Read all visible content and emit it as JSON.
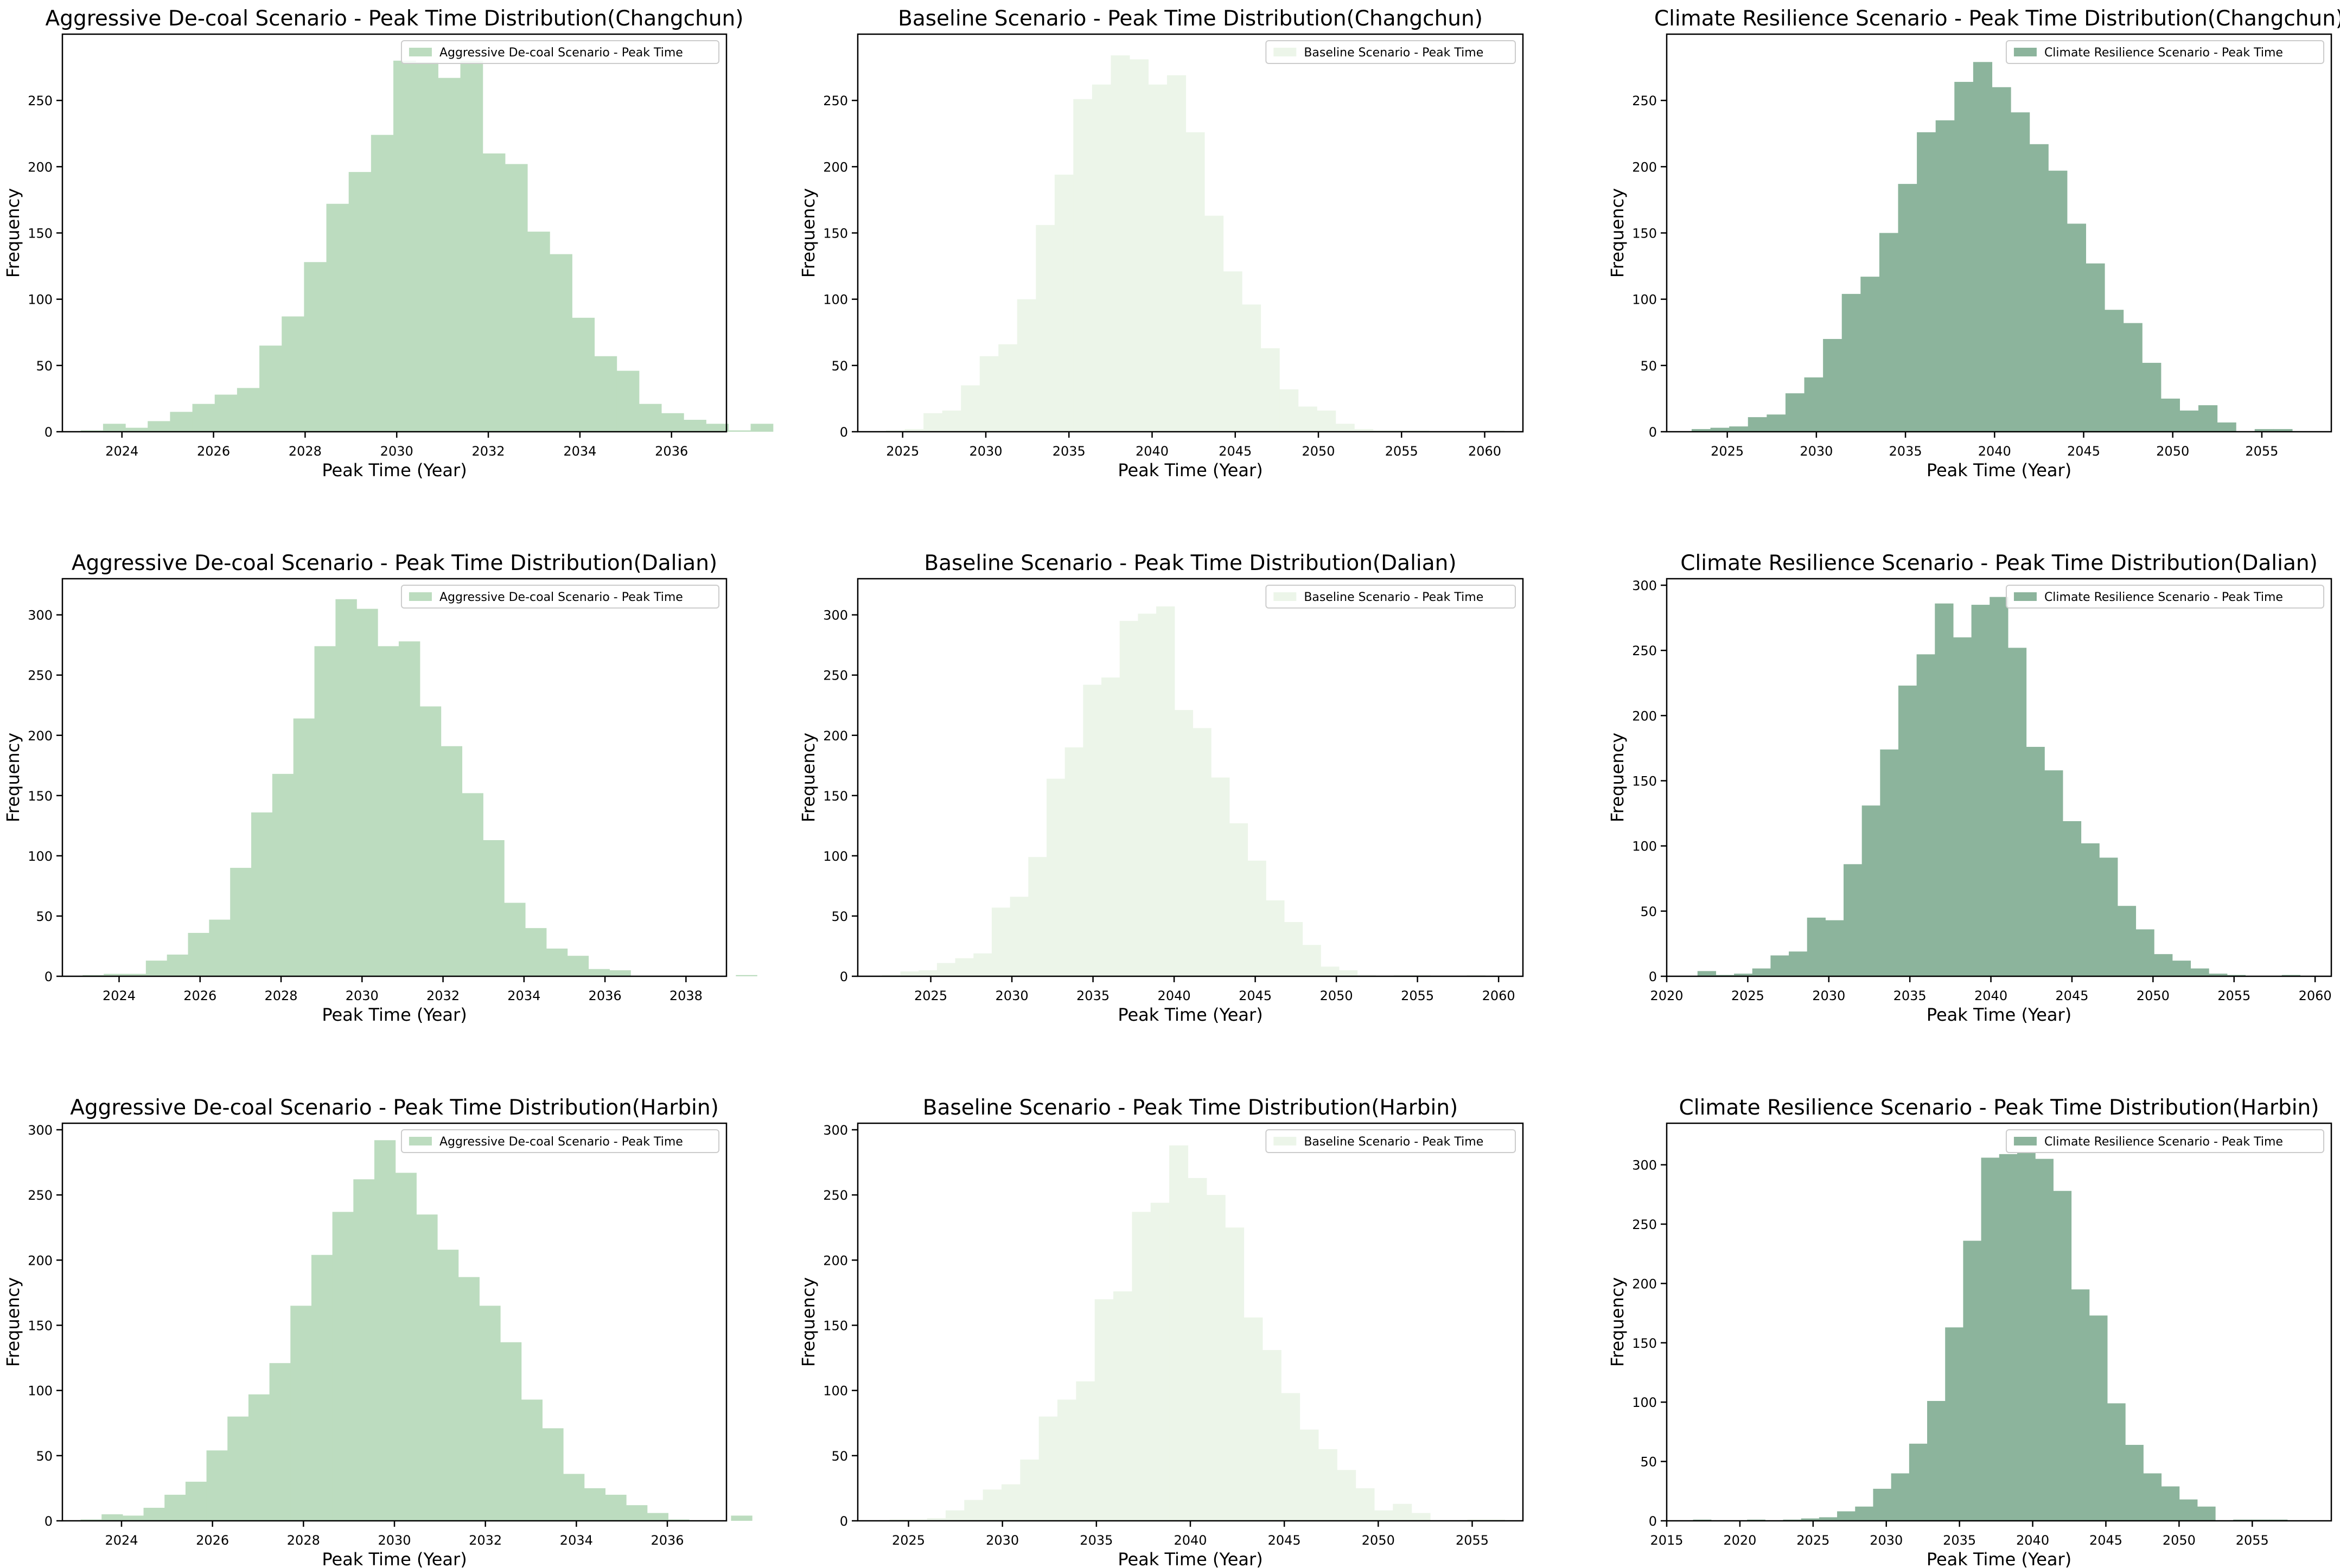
{
  "figure": {
    "rows": [
      "Changchun",
      "Dalian",
      "Harbin"
    ]
  },
  "chart_data": [
    {
      "type": "bar",
      "title": "Aggressive De-coal Scenario - Peak Time Distribution(Changchun)",
      "xlabel": "Peak Time (Year)",
      "ylabel": "Frequency",
      "legend": "Aggressive De-coal Scenario - Peak Time",
      "legend_position": "top-right",
      "color": "#bcdcbf",
      "xlim": [
        2022.7,
        2037.2
      ],
      "ylim": [
        0,
        300
      ],
      "xticks": [
        2024,
        2026,
        2028,
        2030,
        2032,
        2034,
        2036
      ],
      "yticks": [
        0,
        50,
        100,
        150,
        200,
        250
      ],
      "bin_start": 2023.1,
      "bin_width": 0.4876,
      "values": [
        1,
        6,
        3,
        8,
        15,
        21,
        28,
        33,
        65,
        87,
        128,
        172,
        196,
        224,
        280,
        279,
        267,
        280,
        210,
        202,
        151,
        134,
        86,
        57,
        46,
        21,
        14,
        9,
        6,
        1,
        6
      ]
    },
    {
      "type": "bar",
      "title": "Baseline Scenario - Peak Time Distribution(Changchun)",
      "xlabel": "Peak Time (Year)",
      "ylabel": "Frequency",
      "legend": "Baseline Scenario - Peak Time",
      "legend_position": "top-right",
      "color": "#ecf5e9",
      "xlim": [
        2022.3,
        2062.3
      ],
      "ylim": [
        0,
        300
      ],
      "xticks": [
        2025,
        2030,
        2035,
        2040,
        2045,
        2050,
        2055,
        2060
      ],
      "yticks": [
        0,
        50,
        100,
        150,
        200,
        250
      ],
      "bin_start": 2024.0,
      "bin_width": 1.1264,
      "values": [
        1,
        2,
        14,
        16,
        35,
        57,
        66,
        100,
        156,
        194,
        251,
        262,
        284,
        281,
        262,
        269,
        226,
        163,
        121,
        96,
        63,
        32,
        19,
        16,
        6,
        2,
        1,
        1,
        1,
        0,
        0,
        0,
        1
      ]
    },
    {
      "type": "bar",
      "title": "Climate Resilience Scenario - Peak Time Distribution(Changchun)",
      "xlabel": "Peak Time (Year)",
      "ylabel": "Frequency",
      "legend": "Climate Resilience Scenario - Peak Time",
      "legend_position": "top-right",
      "color": "#8cb49c",
      "xlim": [
        2021.6,
        2058.9
      ],
      "ylim": [
        0,
        300
      ],
      "xticks": [
        2025,
        2030,
        2035,
        2040,
        2045,
        2050,
        2055
      ],
      "yticks": [
        0,
        50,
        100,
        150,
        200,
        250
      ],
      "bin_start": 2023.0,
      "bin_width": 1.0533,
      "values": [
        2,
        3,
        4,
        11,
        13,
        29,
        41,
        70,
        104,
        117,
        150,
        187,
        226,
        235,
        264,
        279,
        260,
        241,
        217,
        197,
        157,
        127,
        92,
        82,
        52,
        25,
        16,
        20,
        7,
        0,
        2,
        2
      ]
    },
    {
      "type": "bar",
      "title": "Aggressive De-coal Scenario - Peak Time Distribution(Dalian)",
      "xlabel": "Peak Time (Year)",
      "ylabel": "Frequency",
      "legend": "Aggressive De-coal Scenario - Peak Time",
      "legend_position": "top-right",
      "color": "#bcdcbf",
      "xlim": [
        2022.6,
        2039.0
      ],
      "ylim": [
        0,
        330
      ],
      "xticks": [
        2024,
        2026,
        2028,
        2030,
        2032,
        2034,
        2036,
        2038
      ],
      "yticks": [
        0,
        50,
        100,
        150,
        200,
        250,
        300
      ],
      "bin_start": 2023.1,
      "bin_width": 0.5204,
      "values": [
        1,
        2,
        2,
        13,
        18,
        36,
        47,
        90,
        136,
        168,
        214,
        274,
        313,
        305,
        274,
        278,
        224,
        191,
        152,
        113,
        61,
        40,
        23,
        17,
        6,
        5,
        0,
        0,
        0,
        0,
        0,
        1
      ]
    },
    {
      "type": "bar",
      "title": "Baseline Scenario - Peak Time Distribution(Dalian)",
      "xlabel": "Peak Time (Year)",
      "ylabel": "Frequency",
      "legend": "Baseline Scenario - Peak Time",
      "legend_position": "top-right",
      "color": "#ecf5e9",
      "xlim": [
        2020.5,
        2061.5
      ],
      "ylim": [
        0,
        330
      ],
      "xticks": [
        2025,
        2030,
        2035,
        2040,
        2045,
        2050,
        2055,
        2060
      ],
      "yticks": [
        0,
        50,
        100,
        150,
        200,
        250,
        300
      ],
      "bin_start": 2022.0,
      "bin_width": 1.1264,
      "values": [
        1,
        4,
        5,
        11,
        15,
        19,
        57,
        66,
        99,
        164,
        190,
        242,
        248,
        295,
        301,
        307,
        221,
        206,
        165,
        127,
        96,
        63,
        45,
        26,
        8,
        5,
        1,
        0,
        1,
        1,
        0,
        0,
        1
      ]
    },
    {
      "type": "bar",
      "title": "Climate Resilience Scenario - Peak Time Distribution(Dalian)",
      "xlabel": "Peak Time (Year)",
      "ylabel": "Frequency",
      "legend": "Climate Resilience Scenario - Peak Time",
      "legend_position": "top-right",
      "color": "#8cb49c",
      "xlim": [
        2020.0,
        2061.0
      ],
      "ylim": [
        0,
        305
      ],
      "xticks": [
        2020,
        2025,
        2030,
        2035,
        2040,
        2045,
        2050,
        2055,
        2060
      ],
      "yticks": [
        0,
        50,
        100,
        150,
        200,
        250,
        300
      ],
      "bin_start": 2021.9,
      "bin_width": 1.1264,
      "values": [
        4,
        1,
        2,
        6,
        16,
        19,
        45,
        43,
        86,
        131,
        174,
        223,
        247,
        286,
        260,
        285,
        291,
        252,
        176,
        158,
        119,
        102,
        91,
        54,
        36,
        17,
        12,
        6,
        2,
        1,
        0,
        0,
        1
      ]
    },
    {
      "type": "bar",
      "title": "Aggressive De-coal Scenario - Peak Time Distribution(Harbin)",
      "xlabel": "Peak Time (Year)",
      "ylabel": "Frequency",
      "legend": "Aggressive De-coal Scenario - Peak Time",
      "legend_position": "top-right",
      "color": "#bcdcbf",
      "xlim": [
        2022.7,
        2037.3
      ],
      "ylim": [
        0,
        305
      ],
      "xticks": [
        2024,
        2026,
        2028,
        2030,
        2032,
        2034,
        2036
      ],
      "yticks": [
        0,
        50,
        100,
        150,
        200,
        250,
        300
      ],
      "bin_start": 2023.1,
      "bin_width": 0.4613,
      "values": [
        1,
        5,
        4,
        10,
        20,
        30,
        54,
        80,
        97,
        121,
        165,
        204,
        237,
        262,
        292,
        267,
        235,
        208,
        187,
        165,
        137,
        93,
        71,
        36,
        25,
        20,
        12,
        6,
        1,
        0,
        0,
        4
      ]
    },
    {
      "type": "bar",
      "title": "Baseline Scenario - Peak Time Distribution(Harbin)",
      "xlabel": "Peak Time (Year)",
      "ylabel": "Frequency",
      "legend": "Baseline Scenario - Peak Time",
      "legend_position": "top-right",
      "color": "#ecf5e9",
      "xlim": [
        2022.3,
        2057.7
      ],
      "ylim": [
        0,
        305
      ],
      "xticks": [
        2025,
        2030,
        2035,
        2040,
        2045,
        2050,
        2055
      ],
      "yticks": [
        0,
        50,
        100,
        150,
        200,
        250,
        300
      ],
      "bin_start": 2024.0,
      "bin_width": 0.9918,
      "values": [
        1,
        1,
        2,
        8,
        16,
        24,
        28,
        47,
        80,
        93,
        107,
        170,
        176,
        237,
        244,
        288,
        263,
        250,
        225,
        156,
        131,
        98,
        70,
        55,
        39,
        25,
        8,
        13,
        6,
        0,
        0,
        1,
        1
      ]
    },
    {
      "type": "bar",
      "title": "Climate Resilience Scenario - Peak Time Distribution(Harbin)",
      "xlabel": "Peak Time (Year)",
      "ylabel": "Frequency",
      "legend": "Climate Resilience Scenario - Peak Time",
      "legend_position": "top-right",
      "color": "#8cb49c",
      "xlim": [
        2015.0,
        2060.4
      ],
      "ylim": [
        0,
        335
      ],
      "xticks": [
        2015,
        2020,
        2025,
        2030,
        2035,
        2040,
        2045,
        2050,
        2055
      ],
      "yticks": [
        0,
        50,
        100,
        150,
        200,
        250,
        300
      ],
      "bin_start": 2016.8,
      "bin_width": 1.23,
      "values": [
        1,
        0,
        0,
        1,
        0,
        1,
        2,
        3,
        8,
        12,
        27,
        40,
        65,
        101,
        163,
        236,
        306,
        309,
        310,
        305,
        278,
        195,
        173,
        99,
        64,
        40,
        29,
        18,
        12,
        0,
        1,
        1,
        1
      ]
    }
  ]
}
